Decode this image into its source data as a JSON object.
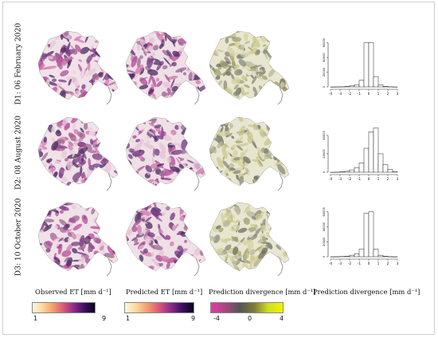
{
  "rows": [
    {
      "label": "D1: 06 February 2020"
    },
    {
      "label": "D2: 08 August 2020"
    },
    {
      "label": "D3: 10 October 2020"
    }
  ],
  "captions": {
    "observed": "Observed ET [mm d⁻¹]",
    "predicted": "Predicted ET [mm d⁻¹]",
    "divergence_map": "Prediction divergence [mm d⁻¹]",
    "divergence_hist": "Prediction divergence [mm d⁻¹]"
  },
  "colorbars": [
    {
      "name": "observed",
      "min": "1",
      "max": "9",
      "colors": [
        "#fdf7e4",
        "#fbd69a",
        "#f39a6a",
        "#d9567a",
        "#8e2a8a",
        "#3a1160",
        "#0b0418"
      ]
    },
    {
      "name": "predicted",
      "min": "1",
      "max": "9",
      "colors": [
        "#fdf7e4",
        "#fbd69a",
        "#f39a6a",
        "#d9567a",
        "#8e2a8a",
        "#3a1160",
        "#0b0418"
      ]
    },
    {
      "name": "divergence",
      "min": "-4",
      "mid": "0",
      "max": "4",
      "colors": [
        "#e63aa5",
        "#a8457f",
        "#555555",
        "#7d7a3a",
        "#cfe020",
        "#f2f200"
      ]
    }
  ],
  "map_colors": {
    "observed": [
      "#e8c8d8",
      "#d37ab0",
      "#b34c9a",
      "#7a3c86",
      "#4b2a63",
      "#f0e2e8",
      "#a06590"
    ],
    "predicted": [
      "#e4c2d4",
      "#cf78ab",
      "#ad4a95",
      "#6e3a80",
      "#4a2a60",
      "#efe0e6",
      "#9a6592"
    ],
    "divergence": [
      "#b8b69a",
      "#8a8a7a",
      "#d6d2a0",
      "#6e6e66",
      "#c9c78a",
      "#e8e6d0",
      "#a0a070"
    ]
  },
  "chart_data": [
    {
      "type": "bar",
      "title": "",
      "xlabel": "",
      "ylabel": "",
      "x_ticks": [
        "-4",
        "-3",
        "-2",
        "-1",
        "0",
        "1",
        "2",
        "3"
      ],
      "y_ticks": [
        "0",
        "20000",
        "40000",
        "60000"
      ],
      "ylim": [
        0,
        65000
      ],
      "bin_edges": [
        -4,
        -3.5,
        -3,
        -2.5,
        -2,
        -1.5,
        -1,
        -0.5,
        0,
        0.5,
        1,
        1.5,
        2,
        2.5,
        3
      ],
      "values": [
        0,
        100,
        200,
        600,
        1500,
        3000,
        9000,
        60000,
        60000,
        14000,
        2500,
        700,
        200,
        0
      ]
    },
    {
      "type": "bar",
      "title": "",
      "xlabel": "",
      "ylabel": "",
      "x_ticks": [
        "-4",
        "-3",
        "-2",
        "-1",
        "0",
        "1",
        "2",
        "3"
      ],
      "y_ticks": [
        "0",
        "20000",
        "40000"
      ],
      "ylim": [
        0,
        52000
      ],
      "bin_edges": [
        -4,
        -3.5,
        -3,
        -2.5,
        -2,
        -1.5,
        -1,
        -0.5,
        0,
        0.5,
        1,
        1.5,
        2,
        2.5,
        3
      ],
      "values": [
        0,
        100,
        400,
        1000,
        2500,
        5000,
        10000,
        26000,
        44000,
        48000,
        20000,
        8000,
        3000,
        800
      ]
    },
    {
      "type": "bar",
      "title": "",
      "xlabel": "",
      "ylabel": "",
      "x_ticks": [
        "-4",
        "-3",
        "-2",
        "-1",
        "0",
        "1",
        "2",
        "3"
      ],
      "y_ticks": [
        "0",
        "20000",
        "40000",
        "60000"
      ],
      "ylim": [
        0,
        64000
      ],
      "bin_edges": [
        -4,
        -3.5,
        -3,
        -2.5,
        -2,
        -1.5,
        -1,
        -0.5,
        0,
        0.5,
        1,
        1.5,
        2,
        2.5,
        3
      ],
      "values": [
        0,
        100,
        300,
        800,
        2000,
        4000,
        10000,
        58000,
        60000,
        10000,
        2000,
        600,
        150,
        0
      ]
    }
  ]
}
